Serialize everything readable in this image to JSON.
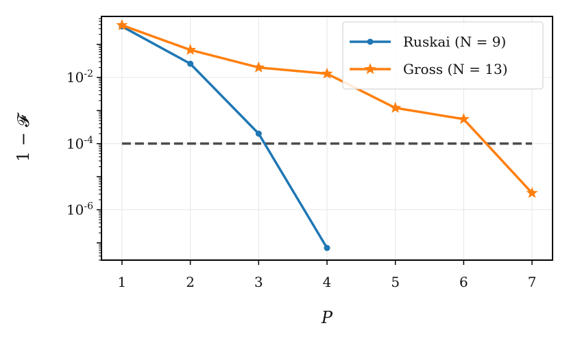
{
  "chart_data": {
    "type": "line",
    "xlabel": "P",
    "ylabel": "1 − 𝓕",
    "x_ticks": [
      1,
      2,
      3,
      4,
      5,
      6,
      7
    ],
    "xlim": [
      0.7,
      7.3
    ],
    "y_scale": "log",
    "ylim": [
      3e-08,
      0.7
    ],
    "y_ticks": [
      {
        "value": 0.01,
        "base": "10",
        "exp": "-2"
      },
      {
        "value": 0.0001,
        "base": "10",
        "exp": "-4"
      },
      {
        "value": 1e-06,
        "base": "10",
        "exp": "-6"
      }
    ],
    "grid": true,
    "legend_position": "top-right",
    "series": [
      {
        "name": "Ruskai (N = 9)",
        "color": "#1f77b4",
        "marker": "circle",
        "x": [
          1,
          2,
          3,
          4
        ],
        "y": [
          0.35,
          0.026,
          0.0002,
          7e-08
        ]
      },
      {
        "name": "Gross (N = 13)",
        "color": "#ff7f0e",
        "marker": "star",
        "x": [
          1,
          2,
          3,
          4,
          5,
          6,
          7
        ],
        "y": [
          0.38,
          0.068,
          0.02,
          0.013,
          0.0012,
          0.00055,
          3.2e-06
        ]
      }
    ],
    "reference_line": {
      "y": 0.0001,
      "x_range": [
        1,
        7
      ],
      "color": "#4d4d4d",
      "style": "dashed"
    }
  }
}
